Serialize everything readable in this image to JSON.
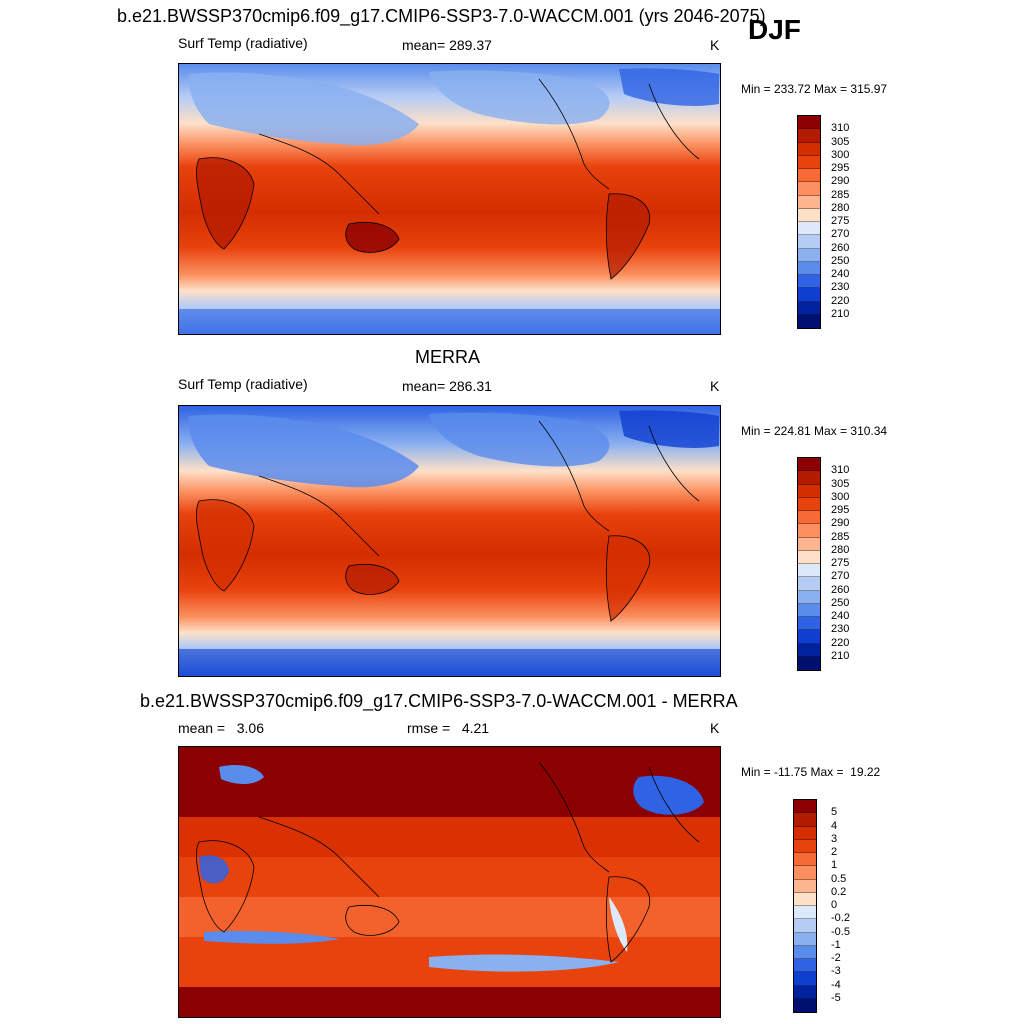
{
  "header": {
    "run_title": "b.e21.BWSSP370cmip6.f09_g17.CMIP6-SSP3-7.0-WACCM.001 (yrs 2046-2075)",
    "season": "DJF"
  },
  "panels": [
    {
      "id": "model",
      "title": "",
      "variable": "Surf Temp (radiative)",
      "stat1": "mean= 289.37",
      "stat2": "",
      "units": "K",
      "minmax": "Min = 233.72 Max = 315.97",
      "colorbar": {
        "labels": [
          "310",
          "305",
          "300",
          "295",
          "290",
          "285",
          "280",
          "275",
          "270",
          "260",
          "250",
          "240",
          "230",
          "220",
          "210"
        ],
        "colors": [
          "#8b0000",
          "#b31b00",
          "#d42d00",
          "#e8420d",
          "#f56a35",
          "#fb8f5f",
          "#fcb58f",
          "#fde0c8",
          "#dbe9fb",
          "#b5ccf5",
          "#8ab0f0",
          "#5a8cec",
          "#2f63e4",
          "#0f3fcf",
          "#00229c",
          "#001070"
        ]
      }
    },
    {
      "id": "obs",
      "title": "MERRA",
      "variable": "Surf Temp (radiative)",
      "stat1": "mean= 286.31",
      "stat2": "",
      "units": "K",
      "minmax": "Min = 224.81 Max = 310.34",
      "colorbar": {
        "labels": [
          "310",
          "305",
          "300",
          "295",
          "290",
          "285",
          "280",
          "275",
          "270",
          "260",
          "250",
          "240",
          "230",
          "220",
          "210"
        ],
        "colors": [
          "#8b0000",
          "#b31b00",
          "#d42d00",
          "#e8420d",
          "#f56a35",
          "#fb8f5f",
          "#fcb58f",
          "#fde0c8",
          "#dbe9fb",
          "#b5ccf5",
          "#8ab0f0",
          "#5a8cec",
          "#2f63e4",
          "#0f3fcf",
          "#00229c",
          "#001070"
        ]
      }
    },
    {
      "id": "diff",
      "title": "b.e21.BWSSP370cmip6.f09_g17.CMIP6-SSP3-7.0-WACCM.001 - MERRA",
      "variable": "",
      "stat1": "mean =   3.06",
      "stat2": "rmse =   4.21",
      "units": "K",
      "minmax": "Min = -11.75 Max =  19.22",
      "colorbar": {
        "labels": [
          "5",
          "4",
          "3",
          "2",
          "1",
          "0.5",
          "0.2",
          "0",
          "-0.2",
          "-0.5",
          "-1",
          "-2",
          "-3",
          "-4",
          "-5"
        ],
        "colors": [
          "#8b0000",
          "#b31b00",
          "#d42d00",
          "#e8420d",
          "#f56a35",
          "#fb8f5f",
          "#fcb58f",
          "#fde0c8",
          "#dbe9fb",
          "#b5ccf5",
          "#8ab0f0",
          "#5a8cec",
          "#2f63e4",
          "#0f3fcf",
          "#00229c",
          "#001070"
        ]
      }
    }
  ]
}
